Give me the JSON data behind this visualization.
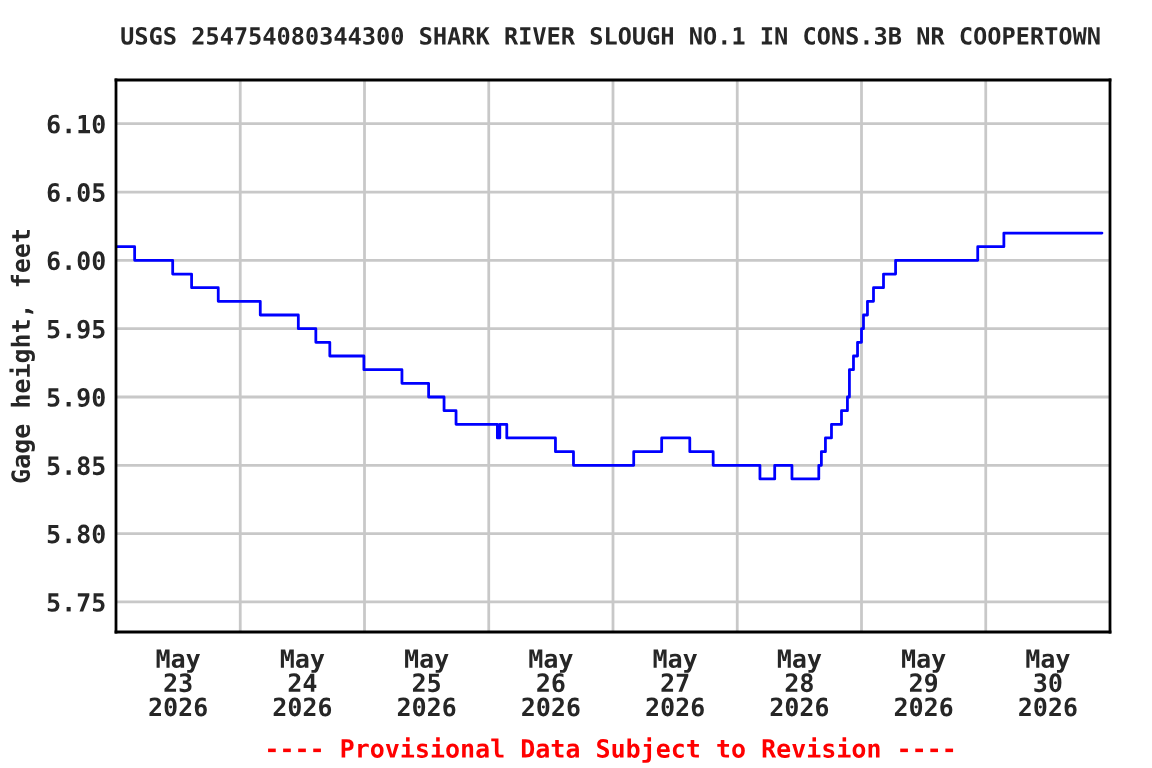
{
  "chart_data": {
    "type": "step",
    "title": "USGS 254754080344300 SHARK RIVER SLOUGH NO.1 IN CONS.3B NR COOPERTOWN",
    "ylabel": "Gage height, feet",
    "annotations": [
      "---- Provisional Data Subject to Revision ----"
    ],
    "x": [
      "2026-05-23T00:00",
      "2026-05-23T03:36",
      "2026-05-23T10:57",
      "2026-05-23T14:36",
      "2026-05-23T19:45",
      "2026-05-24T03:52",
      "2026-05-24T11:13",
      "2026-05-24T14:36",
      "2026-05-24T17:18",
      "2026-05-24T23:53",
      "2026-05-25T07:14",
      "2026-05-25T12:23",
      "2026-05-25T15:22",
      "2026-05-25T17:41",
      "2026-05-26T01:40",
      "2026-05-26T02:08",
      "2026-05-26T03:29",
      "2026-05-26T12:53",
      "2026-05-26T16:22",
      "2026-05-27T04:00",
      "2026-05-27T09:24",
      "2026-05-27T14:50",
      "2026-05-27T19:21",
      "2026-05-28T04:23",
      "2026-05-28T07:14",
      "2026-05-28T10:34",
      "2026-05-28T15:45",
      "2026-05-28T16:15",
      "2026-05-28T17:02",
      "2026-05-28T18:12",
      "2026-05-28T20:08",
      "2026-05-28T21:17",
      "2026-05-28T21:40",
      "2026-05-28T22:27",
      "2026-05-28T23:14",
      "2026-05-29T00:00",
      "2026-05-29T00:23",
      "2026-05-29T01:09",
      "2026-05-29T02:19",
      "2026-05-29T04:15",
      "2026-05-29T06:35",
      "2026-05-29T22:27",
      "2026-05-30T03:30",
      "2026-05-30T22:27"
    ],
    "series": [
      {
        "color": "#0000ff",
        "values": [
          6.01,
          6.0,
          5.99,
          5.98,
          5.97,
          5.96,
          5.95,
          5.94,
          5.93,
          5.92,
          5.91,
          5.9,
          5.89,
          5.88,
          5.87,
          5.88,
          5.87,
          5.86,
          5.85,
          5.86,
          5.87,
          5.86,
          5.85,
          5.84,
          5.85,
          5.84,
          5.85,
          5.86,
          5.87,
          5.88,
          5.89,
          5.9,
          5.92,
          5.93,
          5.94,
          5.95,
          5.96,
          5.97,
          5.98,
          5.99,
          6.0,
          6.01,
          6.02,
          6.02
        ]
      }
    ],
    "xlim": [
      "2026-05-23T00:00",
      "2026-05-31T00:00"
    ],
    "xticks": [
      {
        "value": "2026-05-23T12:00",
        "label": "May\n23\n2026"
      },
      {
        "value": "2026-05-24T12:00",
        "label": "May\n24\n2026"
      },
      {
        "value": "2026-05-25T12:00",
        "label": "May\n25\n2026"
      },
      {
        "value": "2026-05-26T12:00",
        "label": "May\n26\n2026"
      },
      {
        "value": "2026-05-27T12:00",
        "label": "May\n27\n2026"
      },
      {
        "value": "2026-05-28T12:00",
        "label": "May\n28\n2026"
      },
      {
        "value": "2026-05-29T12:00",
        "label": "May\n29\n2026"
      },
      {
        "value": "2026-05-30T12:00",
        "label": "May\n30\n2026"
      },
      {
        "value": "2026-05-24T00:00",
        "label": null
      },
      {
        "value": "2026-05-25T00:00",
        "label": null
      },
      {
        "value": "2026-05-26T00:00",
        "label": null
      },
      {
        "value": "2026-05-27T00:00",
        "label": null
      },
      {
        "value": "2026-05-28T00:00",
        "label": null
      },
      {
        "value": "2026-05-29T00:00",
        "label": null
      },
      {
        "value": "2026-05-30T00:00",
        "label": null
      }
    ],
    "ylim": [
      5.728,
      6.132
    ],
    "yticks": [
      {
        "value": 5.75,
        "label": "5.75"
      },
      {
        "value": 5.8,
        "label": "5.80"
      },
      {
        "value": 5.85,
        "label": "5.85"
      },
      {
        "value": 5.9,
        "label": "5.90"
      },
      {
        "value": 5.95,
        "label": "5.95"
      },
      {
        "value": 6.0,
        "label": "6.00"
      },
      {
        "value": 6.05,
        "label": "6.05"
      },
      {
        "value": 6.1,
        "label": "6.10"
      }
    ],
    "grid": true
  }
}
